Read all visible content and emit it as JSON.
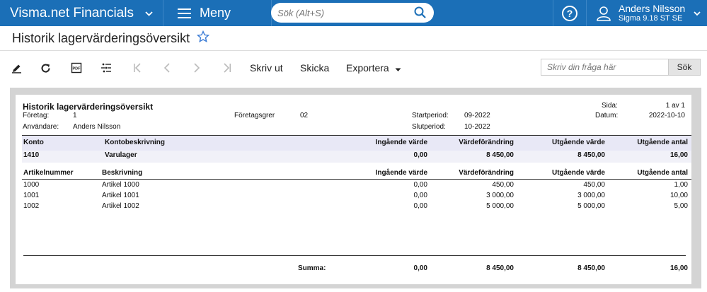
{
  "topbar": {
    "brand": "Visma.net Financials",
    "menu_label": "Meny",
    "search_placeholder": "Sök (Alt+S)",
    "user_name": "Anders Nilsson",
    "user_company": "Sigma 9.18 ST SE"
  },
  "page": {
    "title": "Historik lagervärderingsöversikt"
  },
  "toolbar": {
    "print_label": "Skriv ut",
    "send_label": "Skicka",
    "export_label": "Exportera",
    "search_placeholder": "Skriv din fråga här",
    "search_button": "Sök"
  },
  "report": {
    "title": "Historik lagervärderingsöversikt",
    "company_label": "Företag:",
    "company_value": "1",
    "user_label": "Användare:",
    "user_value": "Anders Nilsson",
    "branch_label": "Företagsgrer",
    "branch_value": "02",
    "start_label": "Startperiod:",
    "start_value": "09-2022",
    "end_label": "Slutperiod:",
    "end_value": "10-2022",
    "page_label": "Sida:",
    "page_value": "1 av 1",
    "date_label": "Datum:",
    "date_value": "2022-10-10",
    "account_headers": [
      "Konto",
      "Kontobeskrivning",
      "Ingående värde",
      "Värdeförändring",
      "Utgående värde",
      "Utgående antal"
    ],
    "account_row": [
      "1410",
      "Varulager",
      "0,00",
      "8 450,00",
      "8 450,00",
      "16,00"
    ],
    "item_headers": [
      "Artikelnummer",
      "Beskrivning",
      "Ingående värde",
      "Värdeförändring",
      "Utgående värde",
      "Utgående antal"
    ],
    "items": [
      [
        "1000",
        "Artikel 1000",
        "0,00",
        "450,00",
        "450,00",
        "1,00"
      ],
      [
        "1001",
        "Artikel 1001",
        "0,00",
        "3 000,00",
        "3 000,00",
        "10,00"
      ],
      [
        "1002",
        "Artikel 1002",
        "0,00",
        "5 000,00",
        "5 000,00",
        "5,00"
      ]
    ],
    "sum_label": "Summa:",
    "sums": [
      "0,00",
      "8 450,00",
      "8 450,00",
      "16,00"
    ]
  },
  "colors": {
    "topbar": "#1b6fb7",
    "accent": "#3a7bd5",
    "header_band": "#e8e8f6"
  },
  "icons": [
    "chevron-down-icon",
    "menu-icon",
    "search-icon",
    "help-icon",
    "user-icon",
    "star-icon",
    "edit-icon",
    "refresh-icon",
    "pdf-icon",
    "settings-icon",
    "first-page-icon",
    "prev-page-icon",
    "next-page-icon",
    "last-page-icon",
    "caret-down-icon"
  ]
}
